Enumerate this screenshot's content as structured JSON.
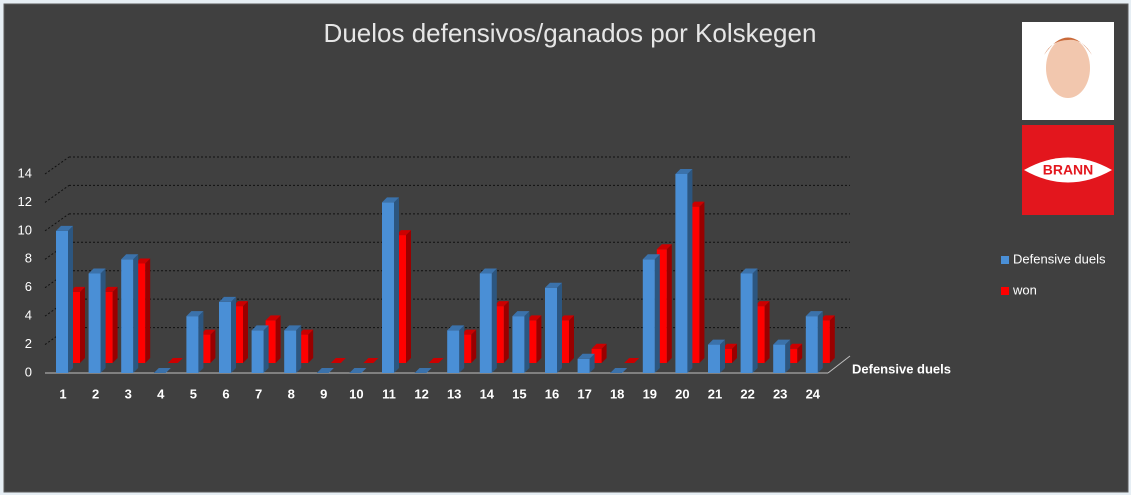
{
  "chart_data": {
    "type": "bar3d",
    "title": "Duelos defensivos/ganados por Kolskegen",
    "depth_axis_label": "Defensive duels",
    "logo_text": "BRANN",
    "categories": [
      "1",
      "2",
      "3",
      "4",
      "5",
      "6",
      "7",
      "8",
      "9",
      "10",
      "11",
      "12",
      "13",
      "14",
      "15",
      "16",
      "17",
      "18",
      "19",
      "20",
      "21",
      "22",
      "23",
      "24"
    ],
    "series": [
      {
        "name": "Defensive duels",
        "color": "#4a8fd6",
        "values": [
          10,
          7,
          8,
          0,
          4,
          5,
          3,
          3,
          0,
          0,
          12,
          0,
          3,
          7,
          4,
          6,
          1,
          0,
          8,
          14,
          2,
          7,
          2,
          4
        ]
      },
      {
        "name": "won",
        "color": "#ff0000",
        "values": [
          5,
          5,
          7,
          0,
          2,
          4,
          3,
          2,
          0,
          0,
          9,
          0,
          2,
          4,
          3,
          3,
          1,
          0,
          8,
          11,
          1,
          4,
          1,
          3
        ]
      }
    ],
    "ylim": [
      0,
      14
    ],
    "yticks": [
      0,
      2,
      4,
      6,
      8,
      10,
      12,
      14
    ],
    "grid": true,
    "legend": "right"
  }
}
